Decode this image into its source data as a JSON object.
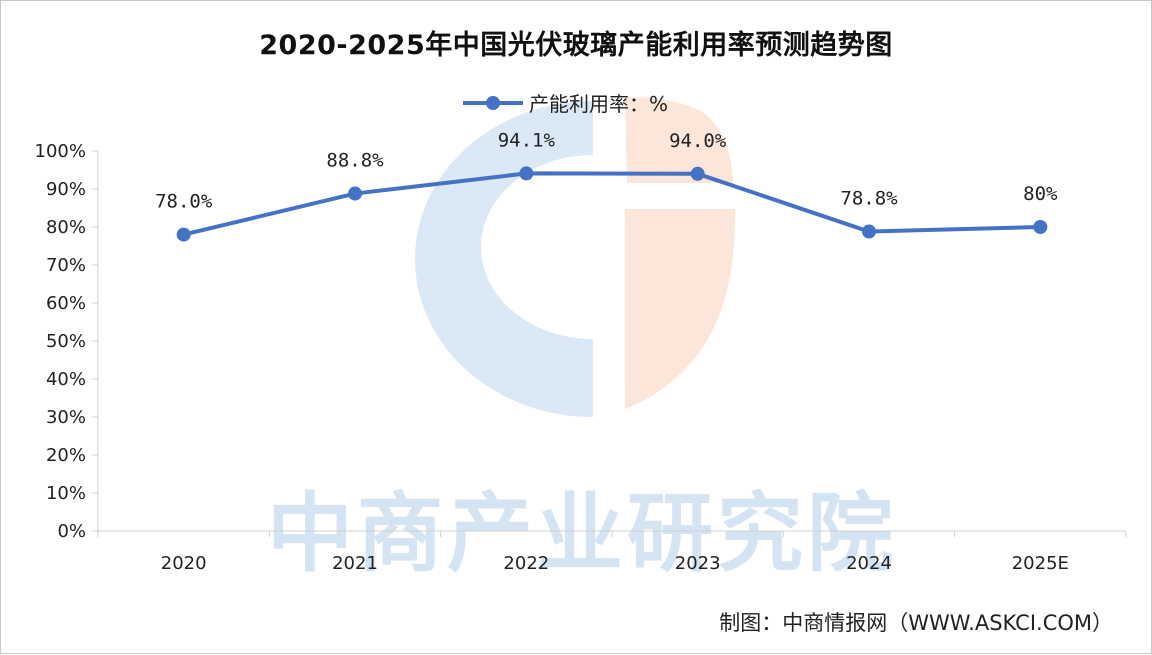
{
  "title": "2020-2025年中国光伏玻璃产能利用率预测趋势图",
  "legend": {
    "label": "产能利用率：%"
  },
  "watermark": "中商产业研究院",
  "source": "制图：中商情报网（WWW.ASKCI.COM）",
  "colors": {
    "series": "#4472c4",
    "axis": "#d0d0d0",
    "logo_blue": "#cfe2f3",
    "logo_orange": "#fbe0d0"
  },
  "chart_data": {
    "type": "line",
    "title": "2020-2025年中国光伏玻璃产能利用率预测趋势图",
    "xlabel": "",
    "ylabel": "",
    "categories": [
      "2020",
      "2021",
      "2022",
      "2023",
      "2024",
      "2025E"
    ],
    "series": [
      {
        "name": "产能利用率：%",
        "values": [
          78.0,
          88.8,
          94.1,
          94.0,
          78.8,
          80
        ],
        "labels": [
          "78.0%",
          "88.8%",
          "94.1%",
          "94.0%",
          "78.8%",
          "80%"
        ]
      }
    ],
    "ylim": [
      0,
      100
    ],
    "yticks": [
      0,
      10,
      20,
      30,
      40,
      50,
      60,
      70,
      80,
      90,
      100
    ],
    "ytick_labels": [
      "0%",
      "10%",
      "20%",
      "30%",
      "40%",
      "50%",
      "60%",
      "70%",
      "80%",
      "90%",
      "100%"
    ],
    "legend_position": "top-center",
    "grid": false
  }
}
